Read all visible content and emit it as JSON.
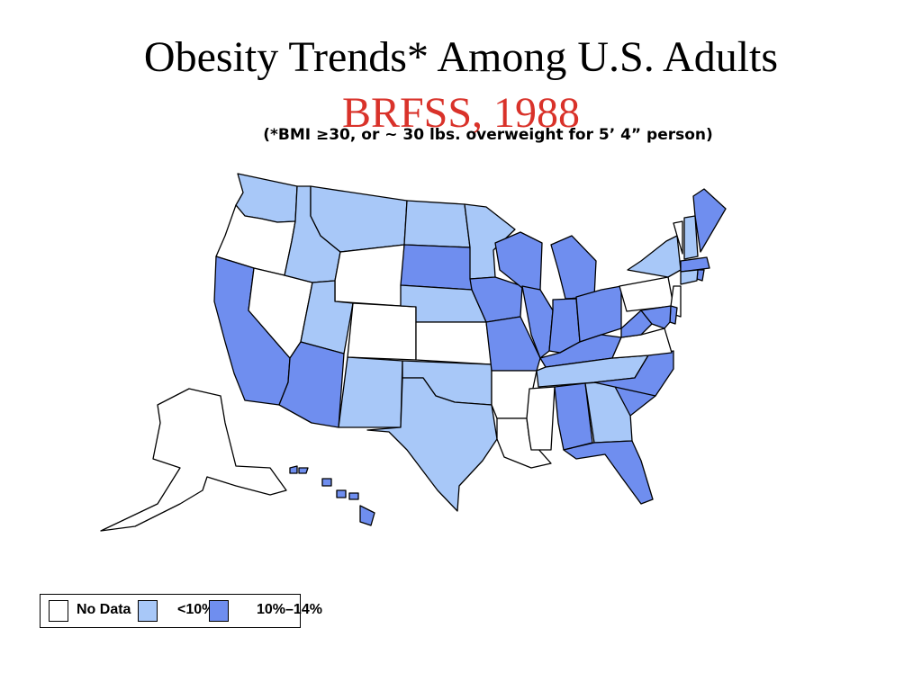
{
  "title": "Obesity Trends* Among U.S. Adults",
  "subtitle": "BRFSS, 1988",
  "note": "(*BMI ≥30, or ~ 30 lbs. overweight for 5’ 4” person)",
  "colors": {
    "subtitle": "#d9322a",
    "no_data": "#ffffff",
    "under_10": "#a8c8f8",
    "10_to_14": "#6f8eef",
    "border": "#000000"
  },
  "legend": [
    {
      "label": "No Data",
      "color": "#ffffff"
    },
    {
      "label": "<10%",
      "color": "#a8c8f8"
    },
    {
      "label": "10%–14%",
      "color": "#6f8eef"
    }
  ],
  "states": {
    "no_data": [
      "OR",
      "NV",
      "WY",
      "CO",
      "KS",
      "AR",
      "LA",
      "MS",
      "VA",
      "PA",
      "NJ",
      "VT",
      "AK"
    ],
    "under_10": [
      "WA",
      "ID",
      "MT",
      "ND",
      "MN",
      "UT",
      "NM",
      "NE",
      "OK",
      "TX",
      "TN",
      "GA",
      "NY",
      "NH",
      "CT"
    ],
    "10_to_14": [
      "CA",
      "AZ",
      "SD",
      "IA",
      "MO",
      "WI",
      "IL",
      "IN",
      "MI",
      "OH",
      "KY",
      "WV",
      "NC",
      "SC",
      "AL",
      "FL",
      "ME",
      "MA",
      "MD",
      "DE",
      "RI",
      "HI"
    ]
  }
}
